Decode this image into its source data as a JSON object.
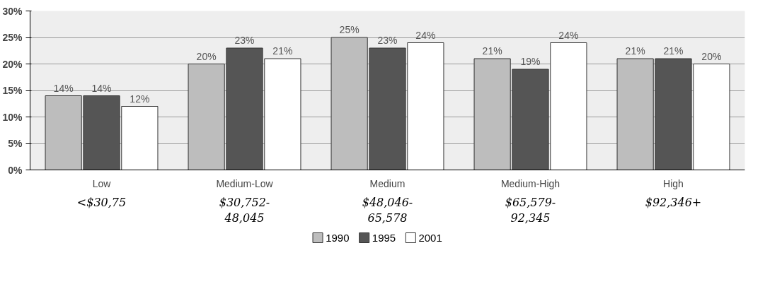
{
  "chart_data": {
    "type": "bar",
    "categories": [
      "Low",
      "Medium-Low",
      "Medium",
      "Medium-High",
      "High"
    ],
    "series": [
      {
        "name": "1990",
        "color": "#bdbdbd",
        "values": [
          14,
          20,
          25,
          21,
          21
        ]
      },
      {
        "name": "1995",
        "color": "#555555",
        "values": [
          14,
          23,
          23,
          19,
          21
        ]
      },
      {
        "name": "2001",
        "color": "#ffffff",
        "values": [
          12,
          21,
          24,
          24,
          20
        ]
      }
    ],
    "ylim": [
      0,
      30
    ],
    "yticks": [
      {
        "value": 0,
        "label": "0%"
      },
      {
        "value": 5,
        "label": "5%"
      },
      {
        "value": 10,
        "label": "10%"
      },
      {
        "value": 15,
        "label": "15%"
      },
      {
        "value": 20,
        "label": "20%"
      },
      {
        "value": 25,
        "label": "25%"
      },
      {
        "value": 30,
        "label": "30%"
      }
    ],
    "value_labels": [
      [
        "14%",
        "20%",
        "25%",
        "21%",
        "21%"
      ],
      [
        "14%",
        "23%",
        "23%",
        "19%",
        "21%"
      ],
      [
        "12%",
        "21%",
        "24%",
        "24%",
        "20%"
      ]
    ],
    "annotations": [
      "<$30,75",
      "$30,752-\n48,045",
      "$48,046-\n65,578",
      "$65,579-\n92,345",
      "$92,346+"
    ],
    "grid": "y",
    "legend": "bottom"
  }
}
